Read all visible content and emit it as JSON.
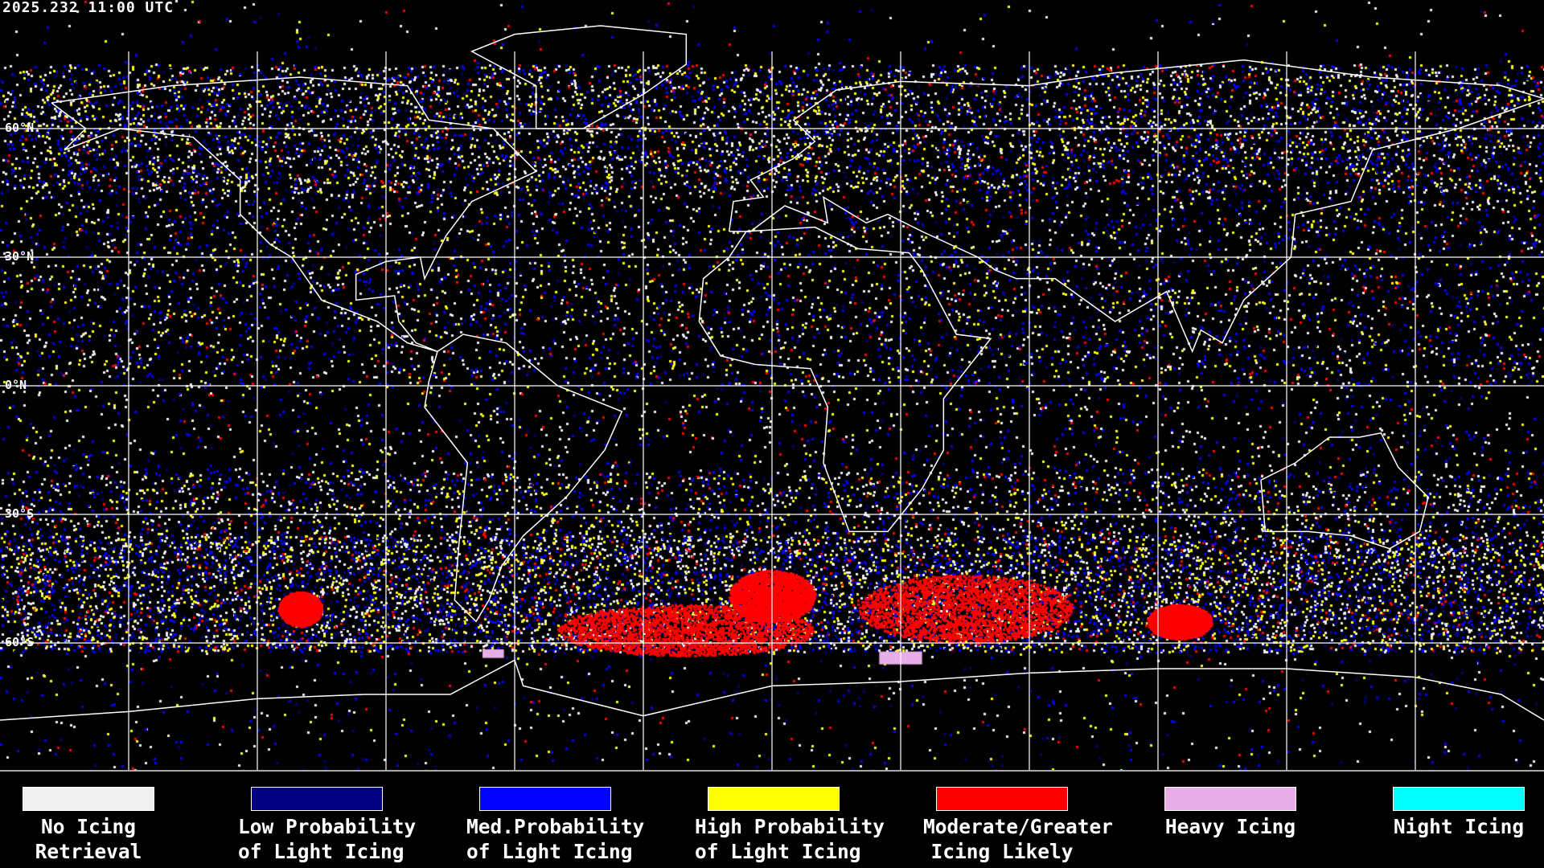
{
  "header": {
    "timestamp": "2025.232 11:00 UTC"
  },
  "map": {
    "projection": "equirectangular",
    "grid_spacing_deg": 30,
    "latitude_labels": [
      "60°N",
      "30°N",
      "0°N",
      "30°S",
      "60°S"
    ],
    "colors": {
      "coastline": "#ffffff",
      "grid": "#ffffff",
      "background": "#000000"
    }
  },
  "legend": [
    {
      "line1": "No Icing",
      "line2": "Retrieval",
      "color": "#f0f0f0"
    },
    {
      "line1": "Low Probability",
      "line2": "of Light Icing",
      "color": "#000080"
    },
    {
      "line1": "Med.Probability",
      "line2": "of Light Icing",
      "color": "#0000ff"
    },
    {
      "line1": "High Probability",
      "line2": "of Light Icing",
      "color": "#ffff00"
    },
    {
      "line1": "Moderate/Greater",
      "line2": "Icing Likely",
      "color": "#ff0000"
    },
    {
      "line1": "Heavy Icing",
      "line2": "",
      "color": "#e8aee8"
    },
    {
      "line1": "Night Icing",
      "line2": "",
      "color": "#00ffff"
    }
  ]
}
